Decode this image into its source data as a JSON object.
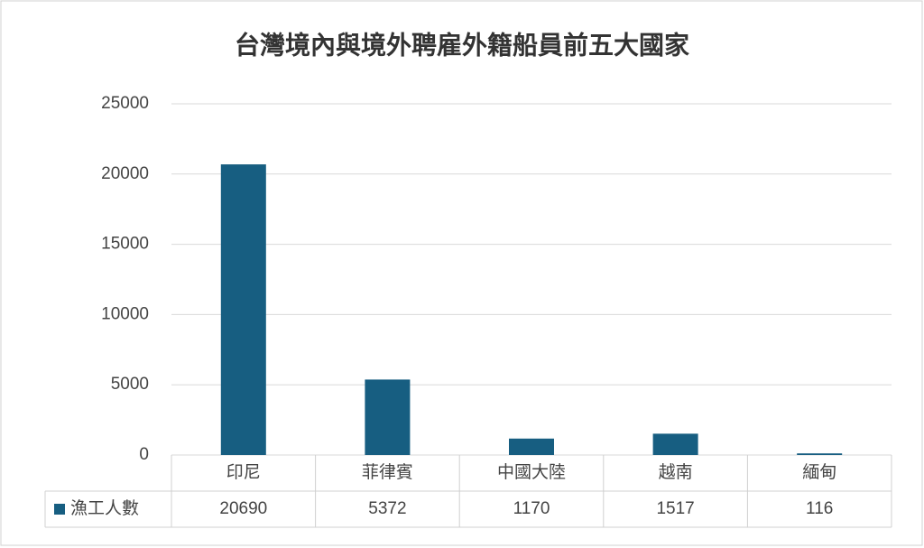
{
  "chart_data": {
    "type": "bar",
    "title": "台灣境內與境外聘雇外籍船員前五大國家",
    "categories": [
      "印尼",
      "菲律賓",
      "中國大陸",
      "越南",
      "緬甸"
    ],
    "series": [
      {
        "name": "漁工人數",
        "color": "#175e81",
        "values": [
          20690,
          5372,
          1170,
          1517,
          116
        ]
      }
    ],
    "ylim": [
      0,
      25000
    ],
    "yticks": [
      0,
      5000,
      10000,
      15000,
      20000,
      25000
    ],
    "grid": true
  }
}
